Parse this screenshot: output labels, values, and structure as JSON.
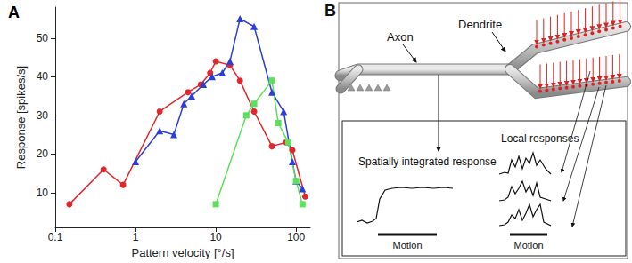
{
  "chart_data": {
    "type": "line",
    "panel_label": "A",
    "x_label": "Pattern velocity [°/s]",
    "y_label": "Response [spikes/s]",
    "log": "x",
    "xlim": [
      0.1,
      150
    ],
    "xticks": [
      0.1,
      1,
      10,
      100
    ],
    "ylim": [
      1,
      58
    ],
    "yticks": [
      10,
      20,
      30,
      40,
      50
    ],
    "grid": false,
    "series": [
      {
        "color": "#e3262b",
        "marker": "circle",
        "x": [
          0.15,
          0.4,
          0.7,
          2,
          4.5,
          6.5,
          8.5,
          10,
          15,
          20,
          30,
          50,
          75,
          90,
          130
        ],
        "values": [
          7,
          16,
          12,
          31,
          36,
          38,
          41,
          44,
          43,
          39,
          31,
          22,
          23,
          21,
          9
        ]
      },
      {
        "color": "#2b3ed6",
        "marker": "triangle",
        "x": [
          1,
          2,
          3,
          4,
          5,
          7,
          9,
          12,
          15,
          20,
          30,
          50,
          70,
          90,
          100,
          120
        ],
        "values": [
          18,
          26,
          25,
          33,
          35,
          38,
          40,
          41,
          44,
          55,
          53,
          36,
          31,
          18,
          13,
          11
        ]
      },
      {
        "color": "#5ce05c",
        "marker": "square",
        "x": [
          10,
          24,
          30,
          50,
          60,
          80,
          100,
          120
        ],
        "values": [
          7,
          30,
          33,
          39,
          28,
          23,
          13,
          7
        ]
      }
    ]
  },
  "diagram": {
    "panel_label": "B",
    "axon_label": "Axon",
    "dendrite_label": "Dendrite",
    "inset": {
      "left": {
        "title": "Spatially integrated response",
        "bar_label": "Motion"
      },
      "right": {
        "title": "Local responses",
        "bar_label": "Motion"
      }
    }
  }
}
